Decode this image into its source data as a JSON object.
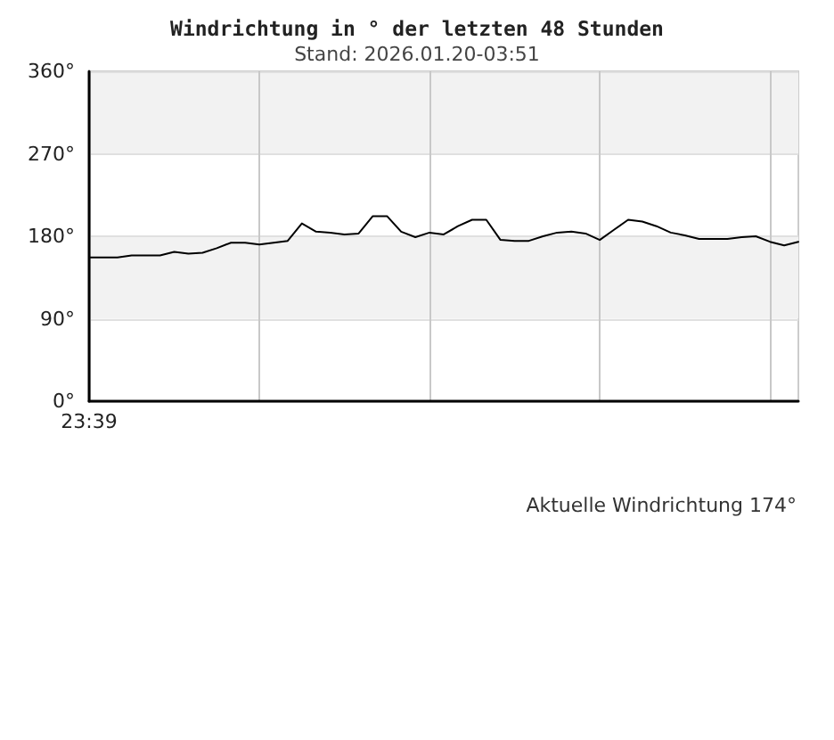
{
  "chart_data": {
    "type": "line",
    "title": "Windrichtung in ° der letzten 48 Stunden",
    "subtitle": "Stand: 2026.01.20-03:51",
    "annotations": [
      "Aktuelle Windrichtung 174°"
    ],
    "categories": [
      "23:39",
      null,
      null,
      null,
      null,
      null,
      null,
      null,
      null,
      null,
      null,
      null,
      null,
      null,
      null,
      null,
      null,
      null,
      null,
      null,
      null,
      null,
      null,
      null,
      null,
      null,
      null,
      null,
      null,
      null,
      null,
      null,
      null,
      null,
      null,
      null,
      null,
      null,
      null,
      null,
      null,
      null,
      null,
      null,
      null,
      null,
      null,
      null,
      null,
      null,
      null
    ],
    "series": [
      {
        "color": "#000000",
        "values": [
          157,
          157,
          157,
          159,
          159,
          159,
          163,
          161,
          162,
          167,
          173,
          173,
          171,
          173,
          175,
          194,
          185,
          184,
          182,
          183,
          202,
          202,
          185,
          179,
          184,
          182,
          191,
          198,
          198,
          176,
          175,
          175,
          180,
          184,
          185,
          183,
          176,
          187,
          198,
          196,
          191,
          184,
          181,
          177,
          177,
          177,
          179,
          180,
          174,
          170,
          174
        ]
      }
    ],
    "ylim": [
      0,
      360
    ],
    "yticks": [
      {
        "value": 0,
        "label": "0°"
      },
      {
        "value": 90,
        "label": "90°"
      },
      {
        "value": 180,
        "label": "180°"
      },
      {
        "value": 270,
        "label": "270°"
      },
      {
        "value": 360,
        "label": "360°"
      }
    ],
    "bands": [
      {
        "axis": "y",
        "from": 90,
        "to": 180,
        "color": "#f2f2f2"
      },
      {
        "axis": "y",
        "from": 270,
        "to": 360,
        "color": "#f2f2f2"
      }
    ],
    "grid": true,
    "marker": "none",
    "line_style": "solid"
  }
}
